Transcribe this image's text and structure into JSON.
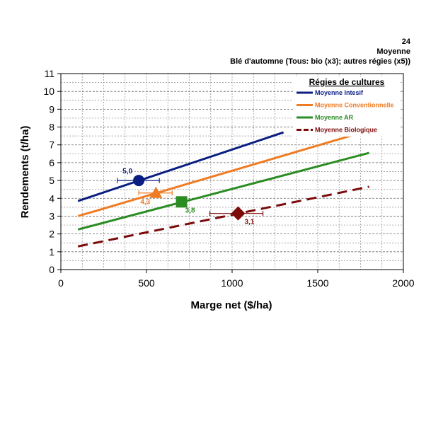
{
  "header": {
    "line1": "24",
    "line2": "Moyenne",
    "line3": "Blé d'automne (Tous:  bio (x3);  autres régies (x5))"
  },
  "chart_data": {
    "type": "scatter",
    "xlabel": "Marge net ($/ha)",
    "ylabel": "Rendements (t/ha)",
    "xlim": [
      0,
      2000
    ],
    "ylim": [
      0,
      11
    ],
    "xticks": [
      0,
      500,
      1000,
      1500,
      2000
    ],
    "yticks": [
      0,
      1,
      2,
      3,
      4,
      5,
      6,
      7,
      8,
      9,
      10,
      11
    ],
    "grid": true,
    "legend": {
      "title": "Régies de cultures",
      "placement": "top-right"
    },
    "series": [
      {
        "name": "Moyenne Intesif",
        "color": "#0a1e82",
        "line_style": "solid",
        "line": [
          [
            100,
            3.85
          ],
          [
            1300,
            7.7
          ]
        ],
        "marker": "circle",
        "point": {
          "x": 455,
          "y": 5.0,
          "xerr": [
            330,
            575
          ],
          "label": "5,0"
        }
      },
      {
        "name": "Moyenne Conventionnelle",
        "color": "#f07b23",
        "line_style": "solid",
        "line": [
          [
            100,
            3.0
          ],
          [
            1760,
            7.7
          ]
        ],
        "marker": "triangle",
        "point": {
          "x": 555,
          "y": 4.3,
          "xerr": [
            455,
            650
          ],
          "label": "4,3"
        }
      },
      {
        "name": "Moyenne AR",
        "color": "#2a8c22",
        "line_style": "solid",
        "line": [
          [
            100,
            2.25
          ],
          [
            1800,
            6.55
          ]
        ],
        "marker": "square",
        "point": {
          "x": 705,
          "y": 3.8,
          "label": "3,8"
        }
      },
      {
        "name": "Moyenne Biologique",
        "color": "#7c0a0a",
        "line_style": "dashed",
        "line": [
          [
            100,
            1.3
          ],
          [
            1800,
            4.65
          ]
        ],
        "marker": "diamond",
        "point": {
          "x": 1035,
          "y": 3.15,
          "xerr": [
            870,
            1180
          ],
          "label": "3,1"
        }
      }
    ]
  }
}
